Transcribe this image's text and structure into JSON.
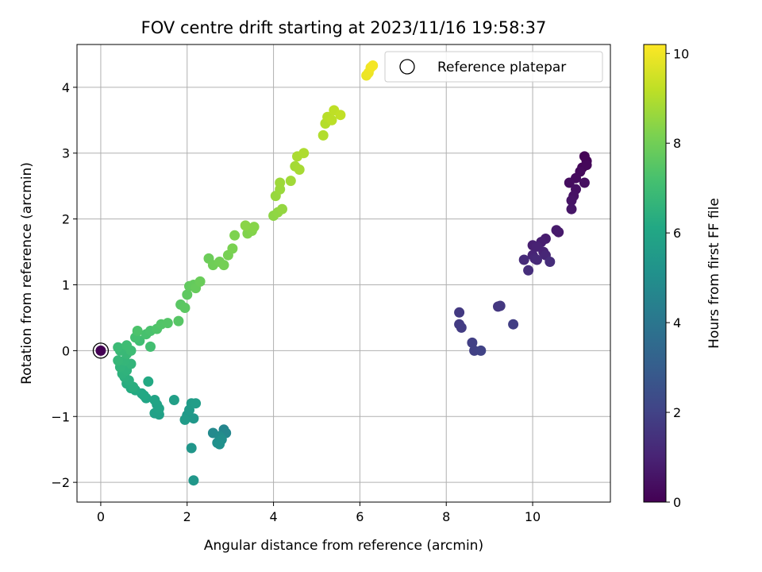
{
  "chart_data": {
    "type": "scatter",
    "title": "FOV centre drift starting at 2023/11/16 19:58:37",
    "xlabel": "Angular distance from reference (arcmin)",
    "ylabel": "Rotation from reference (arcmin)",
    "xlim": [
      -0.55,
      11.8
    ],
    "ylim": [
      -2.3,
      4.65
    ],
    "xticks": [
      0,
      2,
      4,
      6,
      8,
      10
    ],
    "xtick_labels": [
      "0",
      "2",
      "4",
      "6",
      "8",
      "10"
    ],
    "yticks": [
      -2,
      -1,
      0,
      1,
      2,
      3,
      4
    ],
    "ytick_labels": [
      "−2",
      "−1",
      "0",
      "1",
      "2",
      "3",
      "4"
    ],
    "grid": true,
    "legend": {
      "placement": "top-right",
      "entries": [
        "Reference platepar"
      ]
    },
    "colorbar": {
      "label": "Hours from first FF file",
      "range": [
        0,
        10.2
      ],
      "ticks": [
        0,
        2,
        4,
        6,
        8,
        10
      ],
      "tick_labels": [
        "0",
        "2",
        "4",
        "6",
        "8",
        "10"
      ],
      "colormap": "viridis"
    },
    "reference_point": {
      "x": 0,
      "y": 0,
      "c": 0
    },
    "points": [
      [
        11.2,
        2.95,
        0.05
      ],
      [
        11.25,
        2.88,
        0.1
      ],
      [
        11.15,
        2.78,
        0.15
      ],
      [
        11.25,
        2.82,
        0.2
      ],
      [
        11.1,
        2.72,
        0.25
      ],
      [
        11.0,
        2.62,
        0.3
      ],
      [
        10.85,
        2.55,
        0.35
      ],
      [
        11.2,
        2.55,
        0.4
      ],
      [
        11.0,
        2.45,
        0.45
      ],
      [
        10.95,
        2.35,
        0.5
      ],
      [
        10.9,
        2.28,
        0.55
      ],
      [
        10.9,
        2.15,
        0.6
      ],
      [
        10.6,
        1.8,
        0.7
      ],
      [
        10.55,
        1.83,
        0.75
      ],
      [
        10.3,
        1.7,
        0.8
      ],
      [
        10.2,
        1.65,
        0.85
      ],
      [
        10.0,
        1.6,
        0.9
      ],
      [
        10.1,
        1.58,
        0.95
      ],
      [
        10.25,
        1.5,
        1.0
      ],
      [
        10.0,
        1.45,
        1.05
      ],
      [
        10.3,
        1.45,
        1.1
      ],
      [
        10.05,
        1.4,
        1.15
      ],
      [
        10.1,
        1.38,
        1.2
      ],
      [
        9.8,
        1.38,
        1.25
      ],
      [
        10.4,
        1.35,
        1.3
      ],
      [
        9.9,
        1.22,
        1.35
      ],
      [
        9.2,
        0.67,
        1.6
      ],
      [
        9.25,
        0.68,
        1.65
      ],
      [
        8.3,
        0.58,
        1.7
      ],
      [
        8.3,
        0.4,
        1.75
      ],
      [
        8.35,
        0.35,
        1.8
      ],
      [
        9.55,
        0.4,
        1.85
      ],
      [
        8.6,
        0.12,
        1.9
      ],
      [
        8.65,
        0.0,
        1.95
      ],
      [
        8.8,
        0.0,
        2.0
      ],
      [
        2.85,
        -1.2,
        4.6
      ],
      [
        2.9,
        -1.25,
        4.7
      ],
      [
        2.6,
        -1.25,
        4.8
      ],
      [
        2.75,
        -1.3,
        4.9
      ],
      [
        2.8,
        -1.35,
        5.0
      ],
      [
        2.7,
        -1.4,
        5.05
      ],
      [
        2.75,
        -1.42,
        5.1
      ],
      [
        2.1,
        -1.48,
        5.3
      ],
      [
        2.15,
        -1.97,
        5.35
      ],
      [
        2.15,
        -1.03,
        5.4
      ],
      [
        2.0,
        -0.98,
        5.45
      ],
      [
        2.05,
        -0.9,
        5.5
      ],
      [
        1.95,
        -1.05,
        5.55
      ],
      [
        2.1,
        -0.8,
        5.6
      ],
      [
        2.2,
        -0.8,
        5.65
      ],
      [
        1.7,
        -0.75,
        5.7
      ],
      [
        1.35,
        -0.97,
        5.75
      ],
      [
        1.25,
        -0.95,
        5.8
      ],
      [
        1.3,
        -0.82,
        5.85
      ],
      [
        1.35,
        -0.88,
        5.9
      ],
      [
        1.25,
        -0.75,
        5.95
      ],
      [
        1.05,
        -0.72,
        6.0
      ],
      [
        0.95,
        -0.65,
        6.05
      ],
      [
        1.0,
        -0.68,
        6.1
      ],
      [
        1.1,
        -0.47,
        6.15
      ],
      [
        0.8,
        -0.6,
        6.2
      ],
      [
        0.7,
        -0.57,
        6.25
      ],
      [
        0.6,
        -0.5,
        6.3
      ],
      [
        0.75,
        -0.55,
        6.35
      ],
      [
        0.65,
        -0.45,
        6.4
      ],
      [
        0.55,
        -0.4,
        6.45
      ],
      [
        0.5,
        -0.35,
        6.5
      ],
      [
        0.6,
        -0.3,
        6.55
      ],
      [
        0.45,
        -0.25,
        6.6
      ],
      [
        0.7,
        -0.2,
        6.65
      ],
      [
        0.55,
        -0.15,
        6.7
      ],
      [
        0.4,
        -0.15,
        6.75
      ],
      [
        0.6,
        -0.05,
        6.8
      ],
      [
        0.45,
        0.0,
        6.85
      ],
      [
        0.4,
        0.05,
        6.9
      ],
      [
        0.7,
        0.0,
        6.95
      ],
      [
        0.6,
        0.08,
        7.0
      ],
      [
        0.9,
        0.15,
        7.05
      ],
      [
        1.15,
        0.06,
        7.1
      ],
      [
        0.8,
        0.2,
        7.15
      ],
      [
        1.05,
        0.25,
        7.2
      ],
      [
        1.15,
        0.3,
        7.25
      ],
      [
        0.85,
        0.3,
        7.3
      ],
      [
        1.3,
        0.33,
        7.35
      ],
      [
        1.4,
        0.4,
        7.4
      ],
      [
        1.55,
        0.42,
        7.45
      ],
      [
        1.8,
        0.45,
        7.5
      ],
      [
        1.85,
        0.7,
        7.55
      ],
      [
        1.95,
        0.65,
        7.6
      ],
      [
        2.0,
        0.85,
        7.65
      ],
      [
        2.05,
        0.98,
        7.7
      ],
      [
        2.15,
        1.0,
        7.75
      ],
      [
        2.2,
        0.95,
        7.8
      ],
      [
        2.3,
        1.05,
        7.85
      ],
      [
        2.5,
        1.4,
        7.9
      ],
      [
        2.6,
        1.3,
        7.95
      ],
      [
        2.75,
        1.35,
        8.0
      ],
      [
        2.85,
        1.3,
        8.05
      ],
      [
        2.95,
        1.45,
        8.1
      ],
      [
        3.05,
        1.55,
        8.15
      ],
      [
        3.1,
        1.75,
        8.2
      ],
      [
        3.4,
        1.78,
        8.25
      ],
      [
        3.5,
        1.82,
        8.3
      ],
      [
        3.55,
        1.88,
        8.35
      ],
      [
        3.35,
        1.9,
        8.4
      ],
      [
        4.0,
        2.05,
        8.45
      ],
      [
        4.1,
        2.1,
        8.5
      ],
      [
        4.2,
        2.15,
        8.55
      ],
      [
        4.05,
        2.35,
        8.6
      ],
      [
        4.15,
        2.45,
        8.65
      ],
      [
        4.15,
        2.55,
        8.7
      ],
      [
        4.4,
        2.58,
        8.75
      ],
      [
        4.5,
        2.8,
        8.8
      ],
      [
        4.6,
        2.75,
        8.85
      ],
      [
        4.55,
        2.95,
        8.9
      ],
      [
        4.7,
        3.0,
        8.95
      ],
      [
        5.15,
        3.27,
        9.0
      ],
      [
        5.2,
        3.45,
        9.05
      ],
      [
        5.25,
        3.55,
        9.1
      ],
      [
        5.35,
        3.5,
        9.15
      ],
      [
        5.4,
        3.65,
        9.2
      ],
      [
        5.55,
        3.58,
        9.25
      ],
      [
        6.15,
        4.18,
        9.9
      ],
      [
        6.2,
        4.22,
        9.95
      ],
      [
        6.25,
        4.3,
        10.0
      ],
      [
        6.3,
        4.33,
        10.05
      ]
    ]
  }
}
